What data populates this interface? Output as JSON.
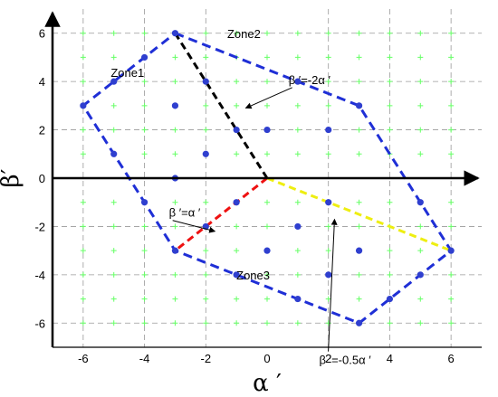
{
  "chart_data": {
    "type": "scatter",
    "title": "",
    "xlabel": "α ′",
    "ylabel": "β′",
    "xlim": [
      -7,
      7
    ],
    "ylim": [
      -7,
      7
    ],
    "xticks": [
      -6,
      -4,
      -2,
      0,
      2,
      4,
      6
    ],
    "yticks": [
      -6,
      -4,
      -2,
      0,
      2,
      4,
      6
    ],
    "xtick_labels": [
      "-6",
      "-4",
      "-2",
      "0",
      "2",
      "4",
      "6"
    ],
    "ytick_labels": [
      "-6",
      "-4",
      "-2",
      "0",
      "2",
      "4",
      "6"
    ],
    "grid": true,
    "colors": {
      "hexagon": "#1f2fd6",
      "grid_points": "#66ff66",
      "vectors": "#2f3fcf",
      "line_black": "#000000",
      "line_red": "#ee1111",
      "line_yellow": "#eeee11",
      "gridlines": "#999999"
    },
    "grid_points": [
      [
        -6,
        6
      ],
      [
        -5,
        6
      ],
      [
        -4,
        6
      ],
      [
        -3,
        6
      ],
      [
        -2,
        6
      ],
      [
        -1,
        6
      ],
      [
        0,
        6
      ],
      [
        1,
        6
      ],
      [
        2,
        6
      ],
      [
        3,
        6
      ],
      [
        4,
        6
      ],
      [
        5,
        6
      ],
      [
        6,
        6
      ],
      [
        -6,
        5
      ],
      [
        -5,
        5
      ],
      [
        -4,
        5
      ],
      [
        -3,
        5
      ],
      [
        -2,
        5
      ],
      [
        -1,
        5
      ],
      [
        0,
        5
      ],
      [
        1,
        5
      ],
      [
        2,
        5
      ],
      [
        3,
        5
      ],
      [
        4,
        5
      ],
      [
        5,
        5
      ],
      [
        6,
        5
      ],
      [
        -6,
        4
      ],
      [
        -5,
        4
      ],
      [
        -4,
        4
      ],
      [
        -3,
        4
      ],
      [
        -2,
        4
      ],
      [
        -1,
        4
      ],
      [
        0,
        4
      ],
      [
        1,
        4
      ],
      [
        2,
        4
      ],
      [
        3,
        4
      ],
      [
        4,
        4
      ],
      [
        5,
        4
      ],
      [
        6,
        4
      ],
      [
        -6,
        3
      ],
      [
        -5,
        3
      ],
      [
        -4,
        3
      ],
      [
        -3,
        3
      ],
      [
        -2,
        3
      ],
      [
        -1,
        3
      ],
      [
        0,
        3
      ],
      [
        1,
        3
      ],
      [
        2,
        3
      ],
      [
        3,
        3
      ],
      [
        4,
        3
      ],
      [
        5,
        3
      ],
      [
        6,
        3
      ],
      [
        -6,
        2
      ],
      [
        -5,
        2
      ],
      [
        -4,
        2
      ],
      [
        -3,
        2
      ],
      [
        -2,
        2
      ],
      [
        -1,
        2
      ],
      [
        0,
        2
      ],
      [
        1,
        2
      ],
      [
        2,
        2
      ],
      [
        3,
        2
      ],
      [
        4,
        2
      ],
      [
        5,
        2
      ],
      [
        6,
        2
      ],
      [
        -6,
        1
      ],
      [
        -5,
        1
      ],
      [
        -4,
        1
      ],
      [
        -3,
        1
      ],
      [
        -2,
        1
      ],
      [
        -1,
        1
      ],
      [
        0,
        1
      ],
      [
        1,
        1
      ],
      [
        2,
        1
      ],
      [
        3,
        1
      ],
      [
        4,
        1
      ],
      [
        5,
        1
      ],
      [
        6,
        1
      ],
      [
        -6,
        -1
      ],
      [
        -5,
        -1
      ],
      [
        -4,
        -1
      ],
      [
        -3,
        -1
      ],
      [
        -2,
        -1
      ],
      [
        -1,
        -1
      ],
      [
        0,
        -1
      ],
      [
        1,
        -1
      ],
      [
        2,
        -1
      ],
      [
        3,
        -1
      ],
      [
        4,
        -1
      ],
      [
        5,
        -1
      ],
      [
        6,
        -1
      ],
      [
        -6,
        -2
      ],
      [
        -5,
        -2
      ],
      [
        -4,
        -2
      ],
      [
        -3,
        -2
      ],
      [
        -2,
        -2
      ],
      [
        -1,
        -2
      ],
      [
        0,
        -2
      ],
      [
        1,
        -2
      ],
      [
        2,
        -2
      ],
      [
        3,
        -2
      ],
      [
        4,
        -2
      ],
      [
        5,
        -2
      ],
      [
        6,
        -2
      ],
      [
        -6,
        -3
      ],
      [
        -5,
        -3
      ],
      [
        -4,
        -3
      ],
      [
        -3,
        -3
      ],
      [
        -2,
        -3
      ],
      [
        -1,
        -3
      ],
      [
        0,
        -3
      ],
      [
        1,
        -3
      ],
      [
        2,
        -3
      ],
      [
        3,
        -3
      ],
      [
        4,
        -3
      ],
      [
        5,
        -3
      ],
      [
        6,
        -3
      ],
      [
        -6,
        -4
      ],
      [
        -5,
        -4
      ],
      [
        -4,
        -4
      ],
      [
        -3,
        -4
      ],
      [
        -2,
        -4
      ],
      [
        -1,
        -4
      ],
      [
        0,
        -4
      ],
      [
        1,
        -4
      ],
      [
        2,
        -4
      ],
      [
        3,
        -4
      ],
      [
        4,
        -4
      ],
      [
        5,
        -4
      ],
      [
        6,
        -4
      ],
      [
        -6,
        -5
      ],
      [
        -5,
        -5
      ],
      [
        -4,
        -5
      ],
      [
        -3,
        -5
      ],
      [
        -2,
        -5
      ],
      [
        -1,
        -5
      ],
      [
        0,
        -5
      ],
      [
        1,
        -5
      ],
      [
        2,
        -5
      ],
      [
        3,
        -5
      ],
      [
        4,
        -5
      ],
      [
        5,
        -5
      ],
      [
        6,
        -5
      ],
      [
        -6,
        -6
      ],
      [
        -5,
        -6
      ],
      [
        -4,
        -6
      ],
      [
        -3,
        -6
      ],
      [
        -2,
        -6
      ],
      [
        -1,
        -6
      ],
      [
        0,
        -6
      ],
      [
        1,
        -6
      ],
      [
        2,
        -6
      ],
      [
        3,
        -6
      ],
      [
        4,
        -6
      ],
      [
        5,
        -6
      ],
      [
        6,
        -6
      ]
    ],
    "vectors": [
      [
        -3,
        6
      ],
      [
        -2,
        4
      ],
      [
        -1,
        2
      ],
      [
        -4,
        5
      ],
      [
        -5,
        4
      ],
      [
        -6,
        3
      ],
      [
        -5,
        1
      ],
      [
        -4,
        -1
      ],
      [
        -3,
        0
      ],
      [
        -3,
        3
      ],
      [
        -2,
        1
      ],
      [
        -1,
        -1
      ],
      [
        -2,
        -2
      ],
      [
        -3,
        -3
      ],
      [
        0,
        2
      ],
      [
        1,
        4
      ],
      [
        3,
        3
      ],
      [
        2,
        2
      ],
      [
        0,
        -3
      ],
      [
        1,
        -2
      ],
      [
        2,
        -1
      ],
      [
        3,
        -3
      ],
      [
        2,
        -4
      ],
      [
        1,
        -5
      ],
      [
        -1,
        -4
      ],
      [
        3,
        -6
      ],
      [
        4,
        -5
      ],
      [
        5,
        -4
      ],
      [
        6,
        -3
      ],
      [
        5,
        -1
      ]
    ],
    "hexagon": [
      [
        -3,
        6
      ],
      [
        3,
        3
      ],
      [
        6,
        -3
      ],
      [
        3,
        -6
      ],
      [
        -3,
        -3
      ],
      [
        -6,
        3
      ]
    ],
    "zone_lines": [
      {
        "name": "β ′=-2α ′",
        "from": [
          0,
          0
        ],
        "to": [
          -3,
          6
        ],
        "color": "line_black"
      },
      {
        "name": "β ′=α ′",
        "from": [
          0,
          0
        ],
        "to": [
          -3,
          -3
        ],
        "color": "line_red"
      },
      {
        "name": "β ′=-0.5α ′",
        "from": [
          0,
          0
        ],
        "to": [
          6,
          -3
        ],
        "color": "line_yellow"
      }
    ],
    "zone_labels": [
      {
        "text": "Zone1",
        "x": -5.1,
        "y": 4.2
      },
      {
        "text": "Zone2",
        "x": -1.3,
        "y": 5.8
      },
      {
        "text": "Zone3",
        "x": -1.0,
        "y": -4.2
      }
    ],
    "annotations": [
      {
        "text": "β ′=-2α ′",
        "x": 0.7,
        "y": 3.9,
        "arrow_to": [
          -0.7,
          2.9
        ]
      },
      {
        "text": "β ′=α ′",
        "x": -3.2,
        "y": -1.6,
        "arrow_to": [
          -1.7,
          -2.2
        ]
      },
      {
        "text": "β ′=-0.5α ′",
        "x": 1.7,
        "y": -7.7,
        "arrow_to": [
          2.2,
          -1.7
        ]
      }
    ]
  }
}
